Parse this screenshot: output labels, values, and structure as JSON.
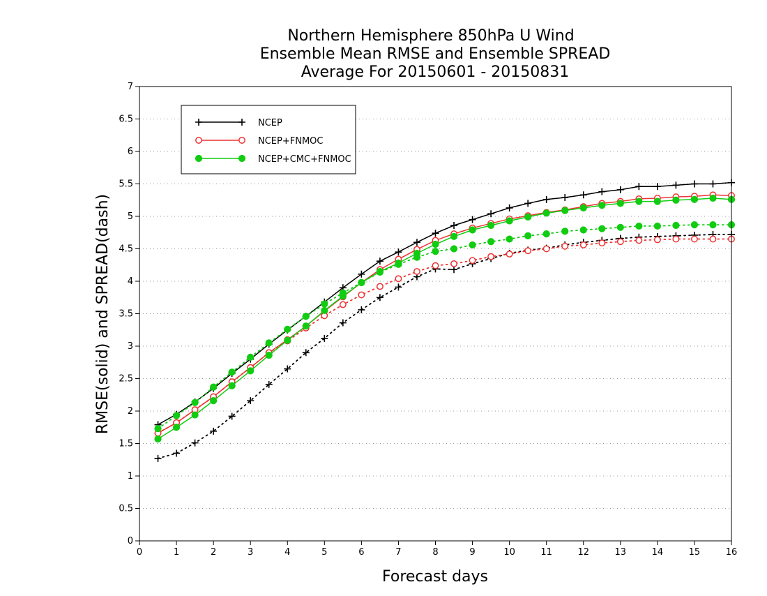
{
  "chart_data": {
    "type": "line",
    "title": [
      "Northern Hemisphere 850hPa U Wind",
      "Ensemble Mean RMSE and Ensemble SPREAD",
      "Average For 20150601 - 20150831"
    ],
    "xlabel": "Forecast days",
    "ylabel": "RMSE(solid) and SPREAD(dash)",
    "xlim": [
      0,
      16
    ],
    "ylim": [
      0,
      7
    ],
    "xticks": [
      "0",
      "1",
      "2",
      "3",
      "4",
      "5",
      "6",
      "7",
      "8",
      "9",
      "10",
      "11",
      "12",
      "13",
      "14",
      "15",
      "16"
    ],
    "yticks": [
      "0",
      "0.5",
      "1",
      "1.5",
      "2",
      "2.5",
      "3",
      "3.5",
      "4",
      "4.5",
      "5",
      "5.5",
      "6",
      "6.5",
      "7"
    ],
    "grid": "horizontal dotted",
    "legend_placement": "top-left",
    "x": [
      0.5,
      1,
      1.5,
      2,
      2.5,
      3,
      3.5,
      4,
      4.5,
      5,
      5.5,
      6,
      6.5,
      7,
      7.5,
      8,
      8.5,
      9,
      9.5,
      10,
      10.5,
      11,
      11.5,
      12,
      12.5,
      13,
      13.5,
      14,
      14.5,
      15,
      15.5,
      16
    ],
    "series": [
      {
        "name": "NCEP",
        "color": "#000000",
        "marker": "plus",
        "rmse": [
          1.79,
          1.95,
          2.14,
          2.35,
          2.58,
          2.8,
          3.03,
          3.25,
          3.46,
          3.68,
          3.9,
          4.11,
          4.31,
          4.45,
          4.6,
          4.74,
          4.86,
          4.95,
          5.04,
          5.13,
          5.2,
          5.26,
          5.29,
          5.33,
          5.38,
          5.41,
          5.46,
          5.46,
          5.48,
          5.5,
          5.5,
          5.52
        ],
        "spread": [
          1.27,
          1.35,
          1.51,
          1.69,
          1.92,
          2.16,
          2.41,
          2.65,
          2.9,
          3.12,
          3.36,
          3.56,
          3.75,
          3.91,
          4.07,
          4.19,
          4.18,
          4.27,
          4.35,
          4.43,
          4.48,
          4.51,
          4.56,
          4.6,
          4.63,
          4.66,
          4.68,
          4.69,
          4.7,
          4.71,
          4.72,
          4.72
        ]
      },
      {
        "name": "NCEP+FNMOC",
        "color": "#ee3333",
        "marker": "open-circle",
        "rmse": [
          1.66,
          1.82,
          2.02,
          2.22,
          2.45,
          2.67,
          2.9,
          3.1,
          3.31,
          3.54,
          3.76,
          3.98,
          4.18,
          4.34,
          4.49,
          4.63,
          4.73,
          4.82,
          4.89,
          4.96,
          5.01,
          5.06,
          5.1,
          5.15,
          5.2,
          5.23,
          5.27,
          5.28,
          5.3,
          5.31,
          5.33,
          5.32
        ],
        "spread": [
          1.66,
          1.82,
          2.02,
          2.22,
          2.45,
          2.67,
          2.9,
          3.08,
          3.28,
          3.47,
          3.64,
          3.79,
          3.92,
          4.04,
          4.15,
          4.24,
          4.27,
          4.32,
          4.38,
          4.42,
          4.47,
          4.5,
          4.54,
          4.56,
          4.59,
          4.61,
          4.63,
          4.64,
          4.65,
          4.65,
          4.65,
          4.65
        ]
      },
      {
        "name": "NCEP+CMC+FNMOC",
        "color": "#11cc11",
        "marker": "filled-circle",
        "rmse": [
          1.57,
          1.75,
          1.94,
          2.16,
          2.39,
          2.62,
          2.86,
          3.09,
          3.31,
          3.55,
          3.77,
          3.98,
          4.15,
          4.28,
          4.43,
          4.57,
          4.69,
          4.79,
          4.86,
          4.93,
          4.99,
          5.05,
          5.09,
          5.13,
          5.17,
          5.2,
          5.23,
          5.23,
          5.25,
          5.26,
          5.28,
          5.26
        ],
        "spread": [
          1.73,
          1.93,
          2.13,
          2.37,
          2.6,
          2.83,
          3.05,
          3.26,
          3.46,
          3.65,
          3.82,
          3.98,
          4.14,
          4.26,
          4.37,
          4.46,
          4.5,
          4.56,
          4.61,
          4.65,
          4.7,
          4.73,
          4.77,
          4.79,
          4.81,
          4.83,
          4.85,
          4.85,
          4.86,
          4.87,
          4.87,
          4.87
        ]
      }
    ]
  }
}
